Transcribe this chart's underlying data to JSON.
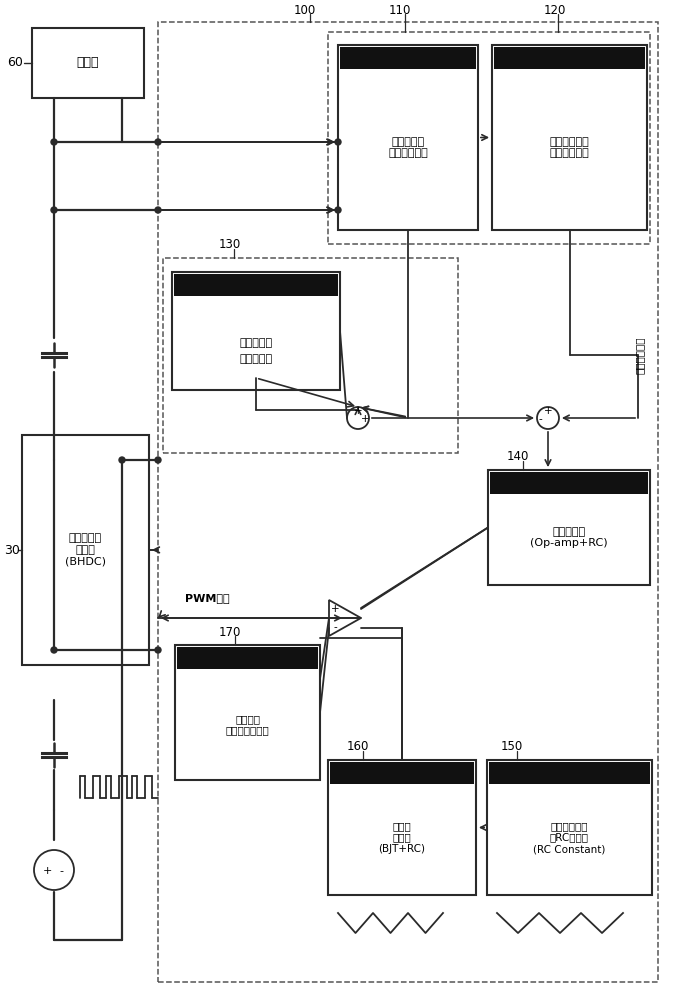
{
  "bg": "#ffffff",
  "lc": "#2a2a2a",
  "labels": {
    "inverter": "逆变器",
    "inv_num": "60",
    "bhdc": "大容量双向\n变换器\n(BHDC)",
    "bhdc_num": "30",
    "hybrid_ctrl": "混合控制器\n（控制功率）",
    "n100": "100",
    "n110": "110",
    "n120": "120",
    "n130": "130",
    "n140": "140",
    "n150": "150",
    "n160": "160",
    "n170": "170",
    "current_ref_amp": "电流参考信号\n变化率放大器",
    "sensor_label": "电流传感器",
    "comp_label": "电流补偿器",
    "curr_ctrl": "电流控制器\n(Op-amp+RC)",
    "tri_gen": "三角波发生器\n（RC恒定）\n(RC Constant)",
    "tri_amp": "三角波\n放大器\n(BJT+RC)",
    "compare": "比较单元\n（生成占空比）",
    "pwm": "PWM信号",
    "curr_ref_sig": "电流参考信号"
  }
}
